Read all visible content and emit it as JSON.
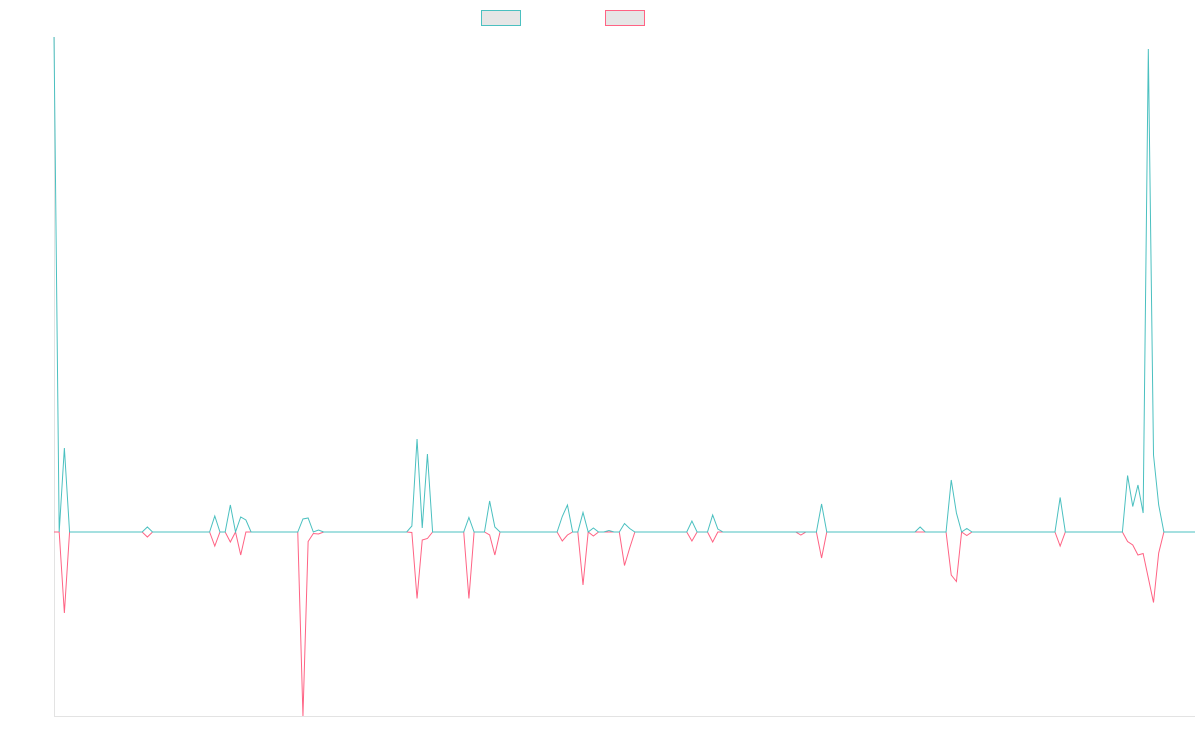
{
  "chart_data": {
    "type": "line",
    "title": "",
    "xlabel": "",
    "ylabel": "",
    "x_count": 221,
    "ylim": [
      -36.8,
      99
    ],
    "grid": false,
    "legend_placement": "top-center",
    "default_value": 0,
    "series": [
      {
        "name": "",
        "color": "#4bc0c0",
        "nonzero_points": [
          [
            0,
            99
          ],
          [
            2,
            16.8
          ],
          [
            18,
            1
          ],
          [
            31,
            3.2
          ],
          [
            34,
            5.4
          ],
          [
            36,
            3
          ],
          [
            37,
            2.4
          ],
          [
            48,
            2.6
          ],
          [
            49,
            2.8
          ],
          [
            51,
            0.4
          ],
          [
            69,
            1.2
          ],
          [
            70,
            18.6
          ],
          [
            71,
            0.8
          ],
          [
            72,
            15.6
          ],
          [
            80,
            2.9
          ],
          [
            84,
            6.2
          ],
          [
            85,
            1
          ],
          [
            98,
            3.1
          ],
          [
            99,
            5.4
          ],
          [
            102,
            3.9
          ],
          [
            104,
            0.8
          ],
          [
            107,
            0.3
          ],
          [
            110,
            1.7
          ],
          [
            111,
            0.7
          ],
          [
            123,
            2.2
          ],
          [
            127,
            3.4
          ],
          [
            128,
            0.6
          ],
          [
            148,
            5.6
          ],
          [
            167,
            1
          ],
          [
            173,
            10.4
          ],
          [
            174,
            3.8
          ],
          [
            176,
            0.7
          ],
          [
            194,
            6.9
          ],
          [
            207,
            11.3
          ],
          [
            208,
            5.1
          ],
          [
            209,
            9.4
          ],
          [
            210,
            3.8
          ],
          [
            211,
            96.6
          ],
          [
            212,
            15.4
          ],
          [
            213,
            5.4
          ]
        ]
      },
      {
        "name": "",
        "color": "#ff6384",
        "nonzero_points": [
          [
            2,
            -16.2
          ],
          [
            18,
            -1
          ],
          [
            31,
            -2.8
          ],
          [
            34,
            -2
          ],
          [
            36,
            -4.6
          ],
          [
            48,
            -36.8
          ],
          [
            49,
            -1.9
          ],
          [
            50,
            -0.3
          ],
          [
            51,
            -0.4
          ],
          [
            69,
            -0.1
          ],
          [
            70,
            -13.3
          ],
          [
            71,
            -1.6
          ],
          [
            72,
            -1.3
          ],
          [
            80,
            -13.3
          ],
          [
            84,
            -0.6
          ],
          [
            85,
            -4.6
          ],
          [
            98,
            -1.8
          ],
          [
            99,
            -0.6
          ],
          [
            102,
            -10.6
          ],
          [
            104,
            -0.8
          ],
          [
            110,
            -6.7
          ],
          [
            111,
            -3.2
          ],
          [
            123,
            -1.8
          ],
          [
            127,
            -2
          ],
          [
            144,
            -0.6
          ],
          [
            148,
            -5.2
          ],
          [
            173,
            -8.6
          ],
          [
            174,
            -9.9
          ],
          [
            176,
            -0.7
          ],
          [
            194,
            -2.8
          ],
          [
            207,
            -1.9
          ],
          [
            208,
            -2.6
          ],
          [
            209,
            -4.6
          ],
          [
            210,
            -4.3
          ],
          [
            211,
            -9.2
          ],
          [
            212,
            -14.1
          ],
          [
            213,
            -4.2
          ]
        ]
      }
    ]
  }
}
